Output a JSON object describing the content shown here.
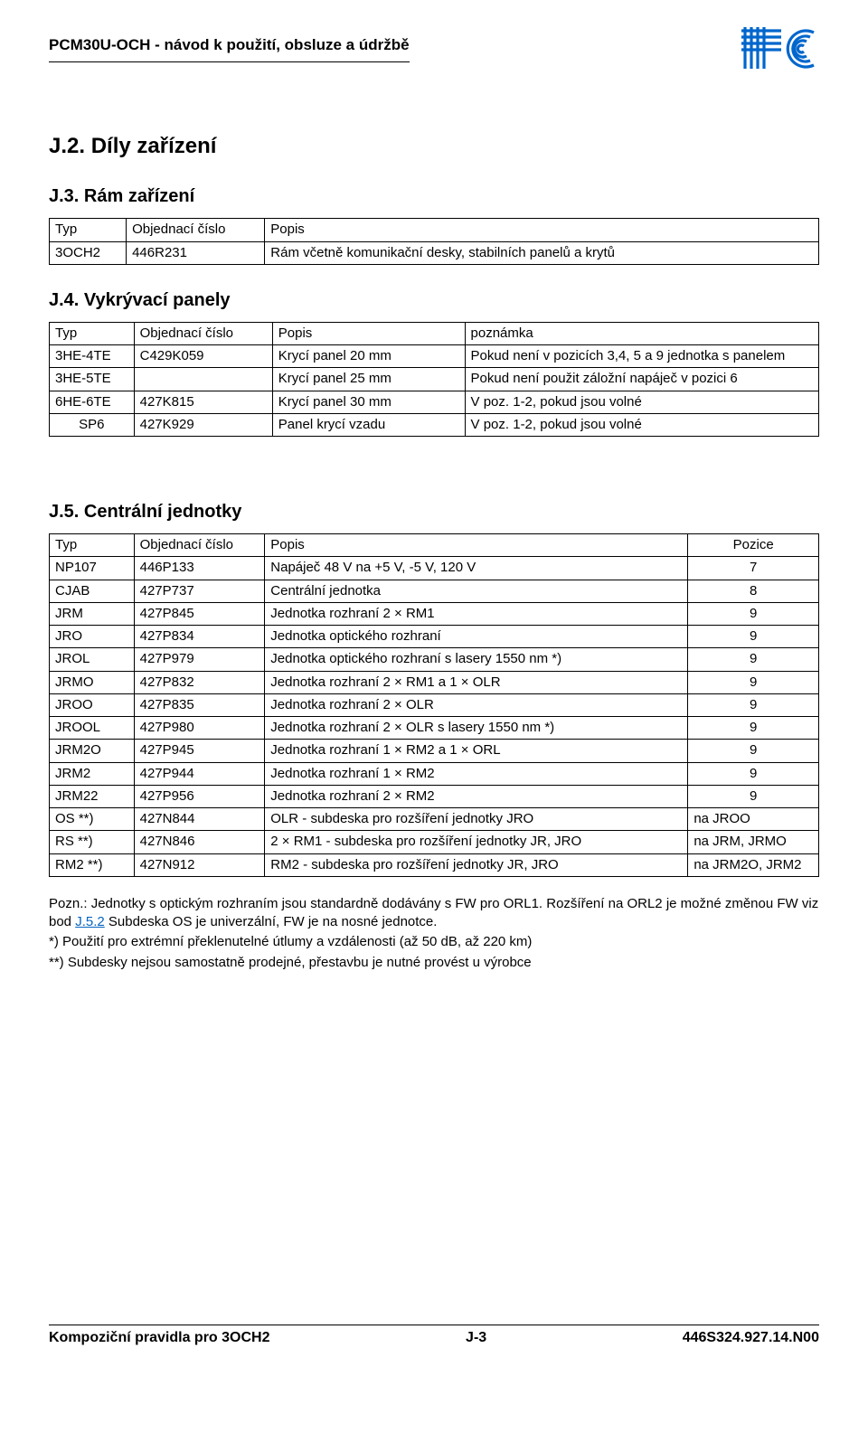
{
  "header": {
    "title": "PCM30U-OCH - návod k použití, obsluze a údržbě"
  },
  "logo": {
    "color": "#0066cc",
    "bars_count": 4,
    "arc_count": 4
  },
  "section_j2": {
    "title": "J.2. Díly zařízení"
  },
  "section_j3": {
    "title": "J.3. Rám zařízení",
    "table": {
      "headers": [
        "Typ",
        "Objednací číslo",
        "Popis"
      ],
      "rows": [
        [
          "3OCH2",
          "446R231",
          "Rám včetně komunikační desky, stabilních panelů a krytů"
        ]
      ]
    }
  },
  "section_j4": {
    "title": "J.4. Vykrývací panely",
    "table": {
      "headers": [
        "Typ",
        "Objednací číslo",
        "Popis",
        "poznámka"
      ],
      "rows": [
        [
          "3HE-4TE",
          "C429K059",
          "Krycí panel 20 mm",
          "Pokud není v pozicích 3,4, 5 a 9 jednotka s panelem"
        ],
        [
          "3HE-5TE",
          "",
          "Krycí panel 25 mm",
          "Pokud není použit záložní napáječ v pozici 6"
        ],
        [
          "6HE-6TE",
          "427K815",
          "Krycí panel 30 mm",
          "V poz. 1-2, pokud jsou volné"
        ],
        [
          "SP6",
          "427K929",
          "Panel krycí vzadu",
          "V poz. 1-2, pokud jsou volné"
        ]
      ]
    }
  },
  "section_j5": {
    "title": "J.5. Centrální jednotky",
    "table": {
      "headers": [
        "Typ",
        "Objednací číslo",
        "Popis",
        "Pozice"
      ],
      "rows": [
        [
          "NP107",
          "446P133",
          "Napáječ 48 V na +5 V,  -5 V, 120 V",
          "7"
        ],
        [
          "CJAB",
          "427P737",
          "Centrální jednotka",
          "8"
        ],
        [
          "JRM",
          "427P845",
          "Jednotka rozhraní 2 × RM1",
          "9"
        ],
        [
          "JRO",
          "427P834",
          "Jednotka optického rozhraní",
          "9"
        ],
        [
          "JROL",
          "427P979",
          "Jednotka optického rozhraní s lasery 1550 nm *)",
          "9"
        ],
        [
          "JRMO",
          "427P832",
          "Jednotka rozhraní 2 × RM1 a 1 × OLR",
          "9"
        ],
        [
          "JROO",
          "427P835",
          "Jednotka  rozhraní 2 × OLR",
          "9"
        ],
        [
          "JROOL",
          "427P980",
          "Jednotka  rozhraní 2 × OLR s lasery 1550 nm *)",
          "9"
        ],
        [
          "JRM2O",
          "427P945",
          "Jednotka rozhraní 1 × RM2 a 1 × ORL",
          "9"
        ],
        [
          "JRM2",
          "427P944",
          "Jednotka rozhraní 1 × RM2",
          "9"
        ],
        [
          "JRM22",
          "427P956",
          "Jednotka rozhraní 2 × RM2",
          "9"
        ],
        [
          "OS  **)",
          "427N844",
          "OLR - subdeska pro rozšíření jednotky JRO",
          "na JROO"
        ],
        [
          "RS  **)",
          "427N846",
          "2 × RM1 - subdeska pro rozšíření jednotky JR, JRO",
          "na JRM, JRMO"
        ],
        [
          "RM2 **)",
          "427N912",
          "RM2 - subdeska pro rozšíření jednotky JR, JRO",
          "na JRM2O, JRM2"
        ]
      ]
    }
  },
  "notes": {
    "line1a": "Pozn.: Jednotky s optickým rozhraním jsou standardně dodávány s FW pro ORL1. Rozšíření na ORL2 je možné změnou FW viz bod ",
    "link_text": "J.5.2",
    "line1b": " Subdeska OS je univerzální, FW je na nosné jednotce.",
    "line2": "*)  Použití pro extrémní překlenutelné útlumy a vzdálenosti (až 50 dB, až 220 km)",
    "line3": "**)  Subdesky nejsou samostatně prodejné, přestavbu je nutné provést u výrobce"
  },
  "footer": {
    "left": "Kompoziční pravidla pro 3OCH2",
    "center": "J-3",
    "right": "446S324.927.14.N00"
  }
}
